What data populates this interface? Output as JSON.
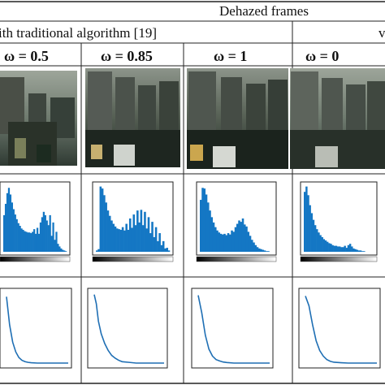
{
  "table": {
    "group_header": "Dehazed frames",
    "subheader_left": "ith traditional algorithm [19]",
    "subheader_right": "v",
    "columns": [
      {
        "omega_label": "ω = 0.5"
      },
      {
        "omega_label": "ω = 0.85"
      },
      {
        "omega_label": "ω = 1"
      },
      {
        "omega_label": "ω = 0"
      }
    ]
  },
  "colors": {
    "histogram_fill": "#1477c4",
    "curve_line": "#1f6fb4",
    "rule": "#222222"
  },
  "chart_data": [
    {
      "type": "bar",
      "name_hint": "histogram-col1",
      "values": [
        0.55,
        0.72,
        0.88,
        0.96,
        0.86,
        0.74,
        0.64,
        0.56,
        0.49,
        0.43,
        0.39,
        0.35,
        0.33,
        0.31,
        0.3,
        0.29,
        0.29,
        0.28,
        0.3,
        0.34,
        0.27,
        0.36,
        0.27,
        0.44,
        0.52,
        0.6,
        0.55,
        0.47,
        0.4,
        0.55,
        0.24,
        0.44,
        0.18,
        0.3,
        0.12,
        0.08,
        0.05,
        0.03,
        0.02,
        0.01
      ]
    },
    {
      "type": "bar",
      "name_hint": "histogram-col2",
      "values": [
        0.02,
        0.04,
        0.98,
        0.95,
        0.85,
        0.74,
        0.62,
        0.54,
        0.47,
        0.42,
        0.38,
        0.35,
        0.34,
        0.33,
        0.37,
        0.32,
        0.42,
        0.33,
        0.5,
        0.36,
        0.56,
        0.4,
        0.62,
        0.44,
        0.63,
        0.4,
        0.6,
        0.35,
        0.52,
        0.28,
        0.45,
        0.22,
        0.37,
        0.16,
        0.28,
        0.1,
        0.16,
        0.05,
        0.06,
        0.02
      ]
    },
    {
      "type": "bar",
      "name_hint": "histogram-col3",
      "values": [
        0.78,
        0.96,
        0.95,
        0.86,
        0.74,
        0.62,
        0.52,
        0.44,
        0.37,
        0.32,
        0.29,
        0.27,
        0.26,
        0.27,
        0.25,
        0.28,
        0.26,
        0.32,
        0.3,
        0.37,
        0.42,
        0.47,
        0.45,
        0.5,
        0.41,
        0.38,
        0.3,
        0.24,
        0.18,
        0.14,
        0.1,
        0.07,
        0.05,
        0.04,
        0.03,
        0.02,
        0.01,
        0.01,
        0.0,
        0.0
      ]
    },
    {
      "type": "bar",
      "name_hint": "histogram-col4",
      "values": [
        0.9,
        0.98,
        0.85,
        0.7,
        0.58,
        0.48,
        0.4,
        0.34,
        0.29,
        0.25,
        0.22,
        0.19,
        0.17,
        0.15,
        0.13,
        0.12,
        0.1,
        0.09,
        0.09,
        0.08,
        0.08,
        0.07,
        0.07,
        0.09,
        0.06,
        0.1,
        0.12,
        0.08,
        0.05,
        0.04,
        0.03,
        0.02,
        0.02,
        0.01,
        0.01,
        0.0,
        0.0,
        0.0,
        0.0,
        0.0
      ]
    },
    {
      "type": "line",
      "name_hint": "curve-col1",
      "x": [
        0,
        0.05,
        0.1,
        0.15,
        0.2,
        0.25,
        0.3,
        0.35,
        0.4,
        0.5,
        0.6,
        0.7,
        0.8,
        0.9,
        1.0
      ],
      "values": [
        0.95,
        0.55,
        0.3,
        0.16,
        0.08,
        0.04,
        0.02,
        0.01,
        0.005,
        0,
        0,
        0,
        0,
        0,
        0
      ]
    },
    {
      "type": "line",
      "name_hint": "curve-col2",
      "x": [
        0,
        0.03,
        0.06,
        0.1,
        0.15,
        0.2,
        0.25,
        0.3,
        0.35,
        0.4,
        0.5,
        0.6,
        0.7,
        0.8,
        0.9,
        1.0
      ],
      "values": [
        0.98,
        0.85,
        0.6,
        0.42,
        0.28,
        0.18,
        0.11,
        0.07,
        0.04,
        0.02,
        0.01,
        0,
        0,
        0,
        0,
        0
      ]
    },
    {
      "type": "line",
      "name_hint": "curve-col3",
      "x": [
        0,
        0.05,
        0.1,
        0.15,
        0.2,
        0.25,
        0.3,
        0.35,
        0.4,
        0.5,
        0.6,
        0.7,
        0.8,
        0.9,
        1.0
      ],
      "values": [
        0.97,
        0.72,
        0.4,
        0.2,
        0.1,
        0.05,
        0.03,
        0.015,
        0.008,
        0,
        0,
        0,
        0,
        0,
        0
      ]
    },
    {
      "type": "line",
      "name_hint": "curve-col4",
      "x": [
        0,
        0.05,
        0.1,
        0.15,
        0.2,
        0.25,
        0.3,
        0.35,
        0.4,
        0.5,
        0.6,
        0.7,
        0.8,
        0.9,
        1.0
      ],
      "values": [
        0.96,
        0.82,
        0.55,
        0.32,
        0.18,
        0.1,
        0.05,
        0.025,
        0.012,
        0.005,
        0,
        0,
        0,
        0,
        0
      ]
    }
  ]
}
